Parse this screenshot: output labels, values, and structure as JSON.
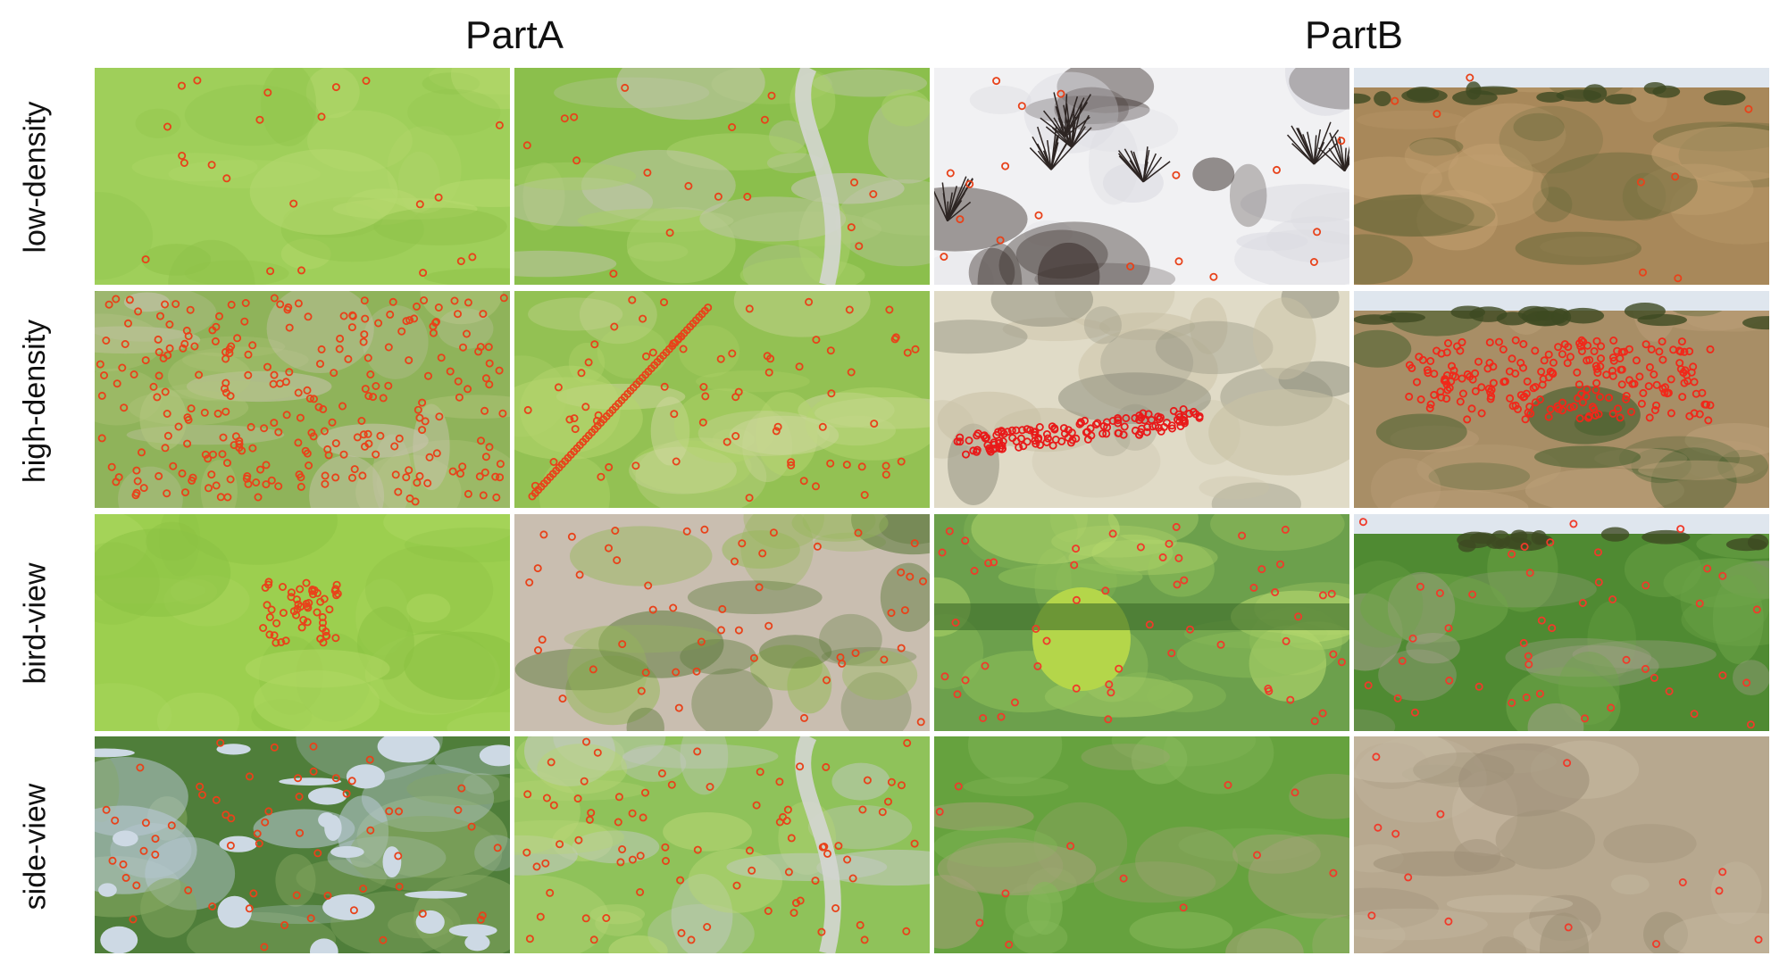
{
  "parts": [
    {
      "label": "PartA"
    },
    {
      "label": "PartB"
    }
  ],
  "rows": [
    {
      "label": "low-density"
    },
    {
      "label": "high-density"
    },
    {
      "label": "bird-view"
    },
    {
      "label": "side-view"
    }
  ],
  "panels": [
    {
      "scene": "grassland-flat",
      "colors": [
        "#9fcf5a",
        "#b6d96e",
        "#8fc24a"
      ],
      "marker": "#e8421a",
      "count": 22
    },
    {
      "scene": "grass-slope-river",
      "colors": [
        "#8bbf4c",
        "#a9cf6a",
        "#c8c6b8"
      ],
      "marker": "#e8421a",
      "count": 18
    },
    {
      "scene": "snow-bushes",
      "colors": [
        "#f1f1f3",
        "#dcdce2",
        "#3a2f2c"
      ],
      "marker": "#e8421a",
      "count": 18
    },
    {
      "scene": "savanna-giraffes",
      "colors": [
        "#a8885a",
        "#c2a071",
        "#6e6b3c"
      ],
      "marker": "#e8421a",
      "count": 8
    },
    {
      "scene": "grass-river-dense",
      "colors": [
        "#8fb35a",
        "#b3c67d",
        "#c9c4b0"
      ],
      "marker": "#e8421a",
      "count": 260
    },
    {
      "scene": "grass-slope-dense",
      "colors": [
        "#93c153",
        "#b4d56d",
        "#cfd7a0"
      ],
      "marker": "#e8421a",
      "count": 130
    },
    {
      "scene": "sand-herd",
      "colors": [
        "#e0dbc7",
        "#c9c1a5",
        "#8c8c7a"
      ],
      "marker": "#e81a1a",
      "count": 140
    },
    {
      "scene": "field-herd",
      "colors": [
        "#a88e66",
        "#bda07a",
        "#3c5a28"
      ],
      "marker": "#f0281a",
      "count": 220
    },
    {
      "scene": "grass-flat-cluster",
      "colors": [
        "#9ccf4f",
        "#b0d863",
        "#8bc243"
      ],
      "marker": "#e8421a",
      "count": 55
    },
    {
      "scene": "riverbed-cliff",
      "colors": [
        "#c9beb0",
        "#97b85a",
        "#5d7a3a"
      ],
      "marker": "#e8421a",
      "count": 50
    },
    {
      "scene": "tree-hedge",
      "colors": [
        "#6ca04c",
        "#8fbf5a",
        "#b6d96e"
      ],
      "marker": "#f03a2a",
      "count": 55
    },
    {
      "scene": "green-field-herd",
      "colors": [
        "#4f8a32",
        "#6ea448",
        "#a3a08a"
      ],
      "marker": "#f03a2a",
      "count": 45
    },
    {
      "scene": "lake-marsh",
      "colors": [
        "#4f7e3a",
        "#86a861",
        "#b9c9d6"
      ],
      "marker": "#e8421a",
      "count": 60
    },
    {
      "scene": "valley-river",
      "colors": [
        "#8fc25a",
        "#b7d676",
        "#c4c9c5"
      ],
      "marker": "#e8421a",
      "count": 80
    },
    {
      "scene": "meadow-side",
      "colors": [
        "#66a23e",
        "#85b85a",
        "#a6a37a"
      ],
      "marker": "#f03a2a",
      "count": 12
    },
    {
      "scene": "dry-grass-side",
      "colors": [
        "#b7a88f",
        "#c9bca5",
        "#9d8f77"
      ],
      "marker": "#f03a2a",
      "count": 14
    }
  ]
}
